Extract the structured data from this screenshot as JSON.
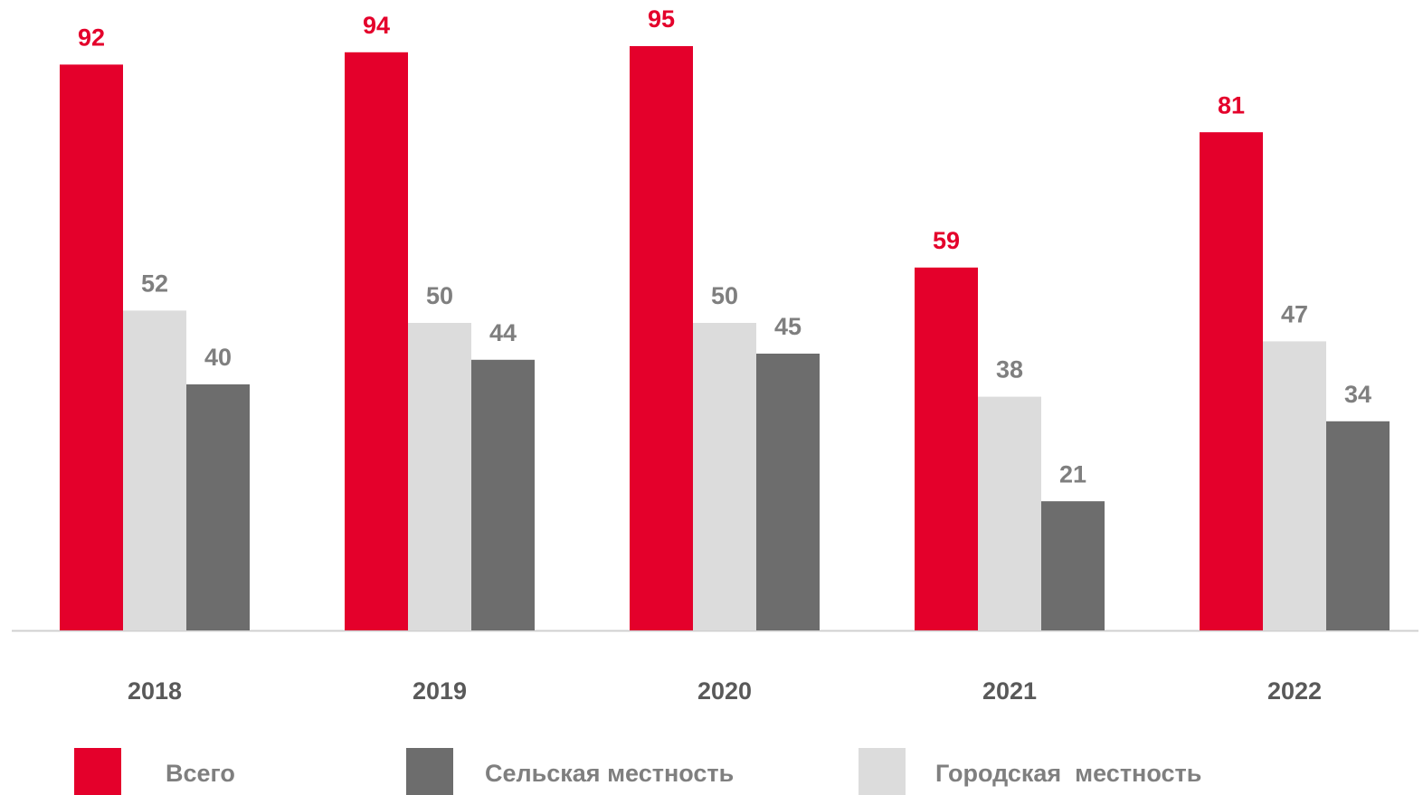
{
  "chart_data": {
    "type": "bar",
    "categories": [
      "2018",
      "2019",
      "2020",
      "2021",
      "2022"
    ],
    "series": [
      {
        "name": "Всего",
        "color": "#e4002b",
        "values": [
          92,
          94,
          95,
          59,
          81
        ]
      },
      {
        "name": "Сельская местность",
        "color": "#6d6d6d",
        "values": [
          40,
          44,
          45,
          21,
          34
        ]
      },
      {
        "name": "Городская  местность",
        "color": "#dcdcdc",
        "values": [
          52,
          50,
          50,
          38,
          47
        ]
      }
    ],
    "ylim": [
      0,
      100
    ]
  }
}
